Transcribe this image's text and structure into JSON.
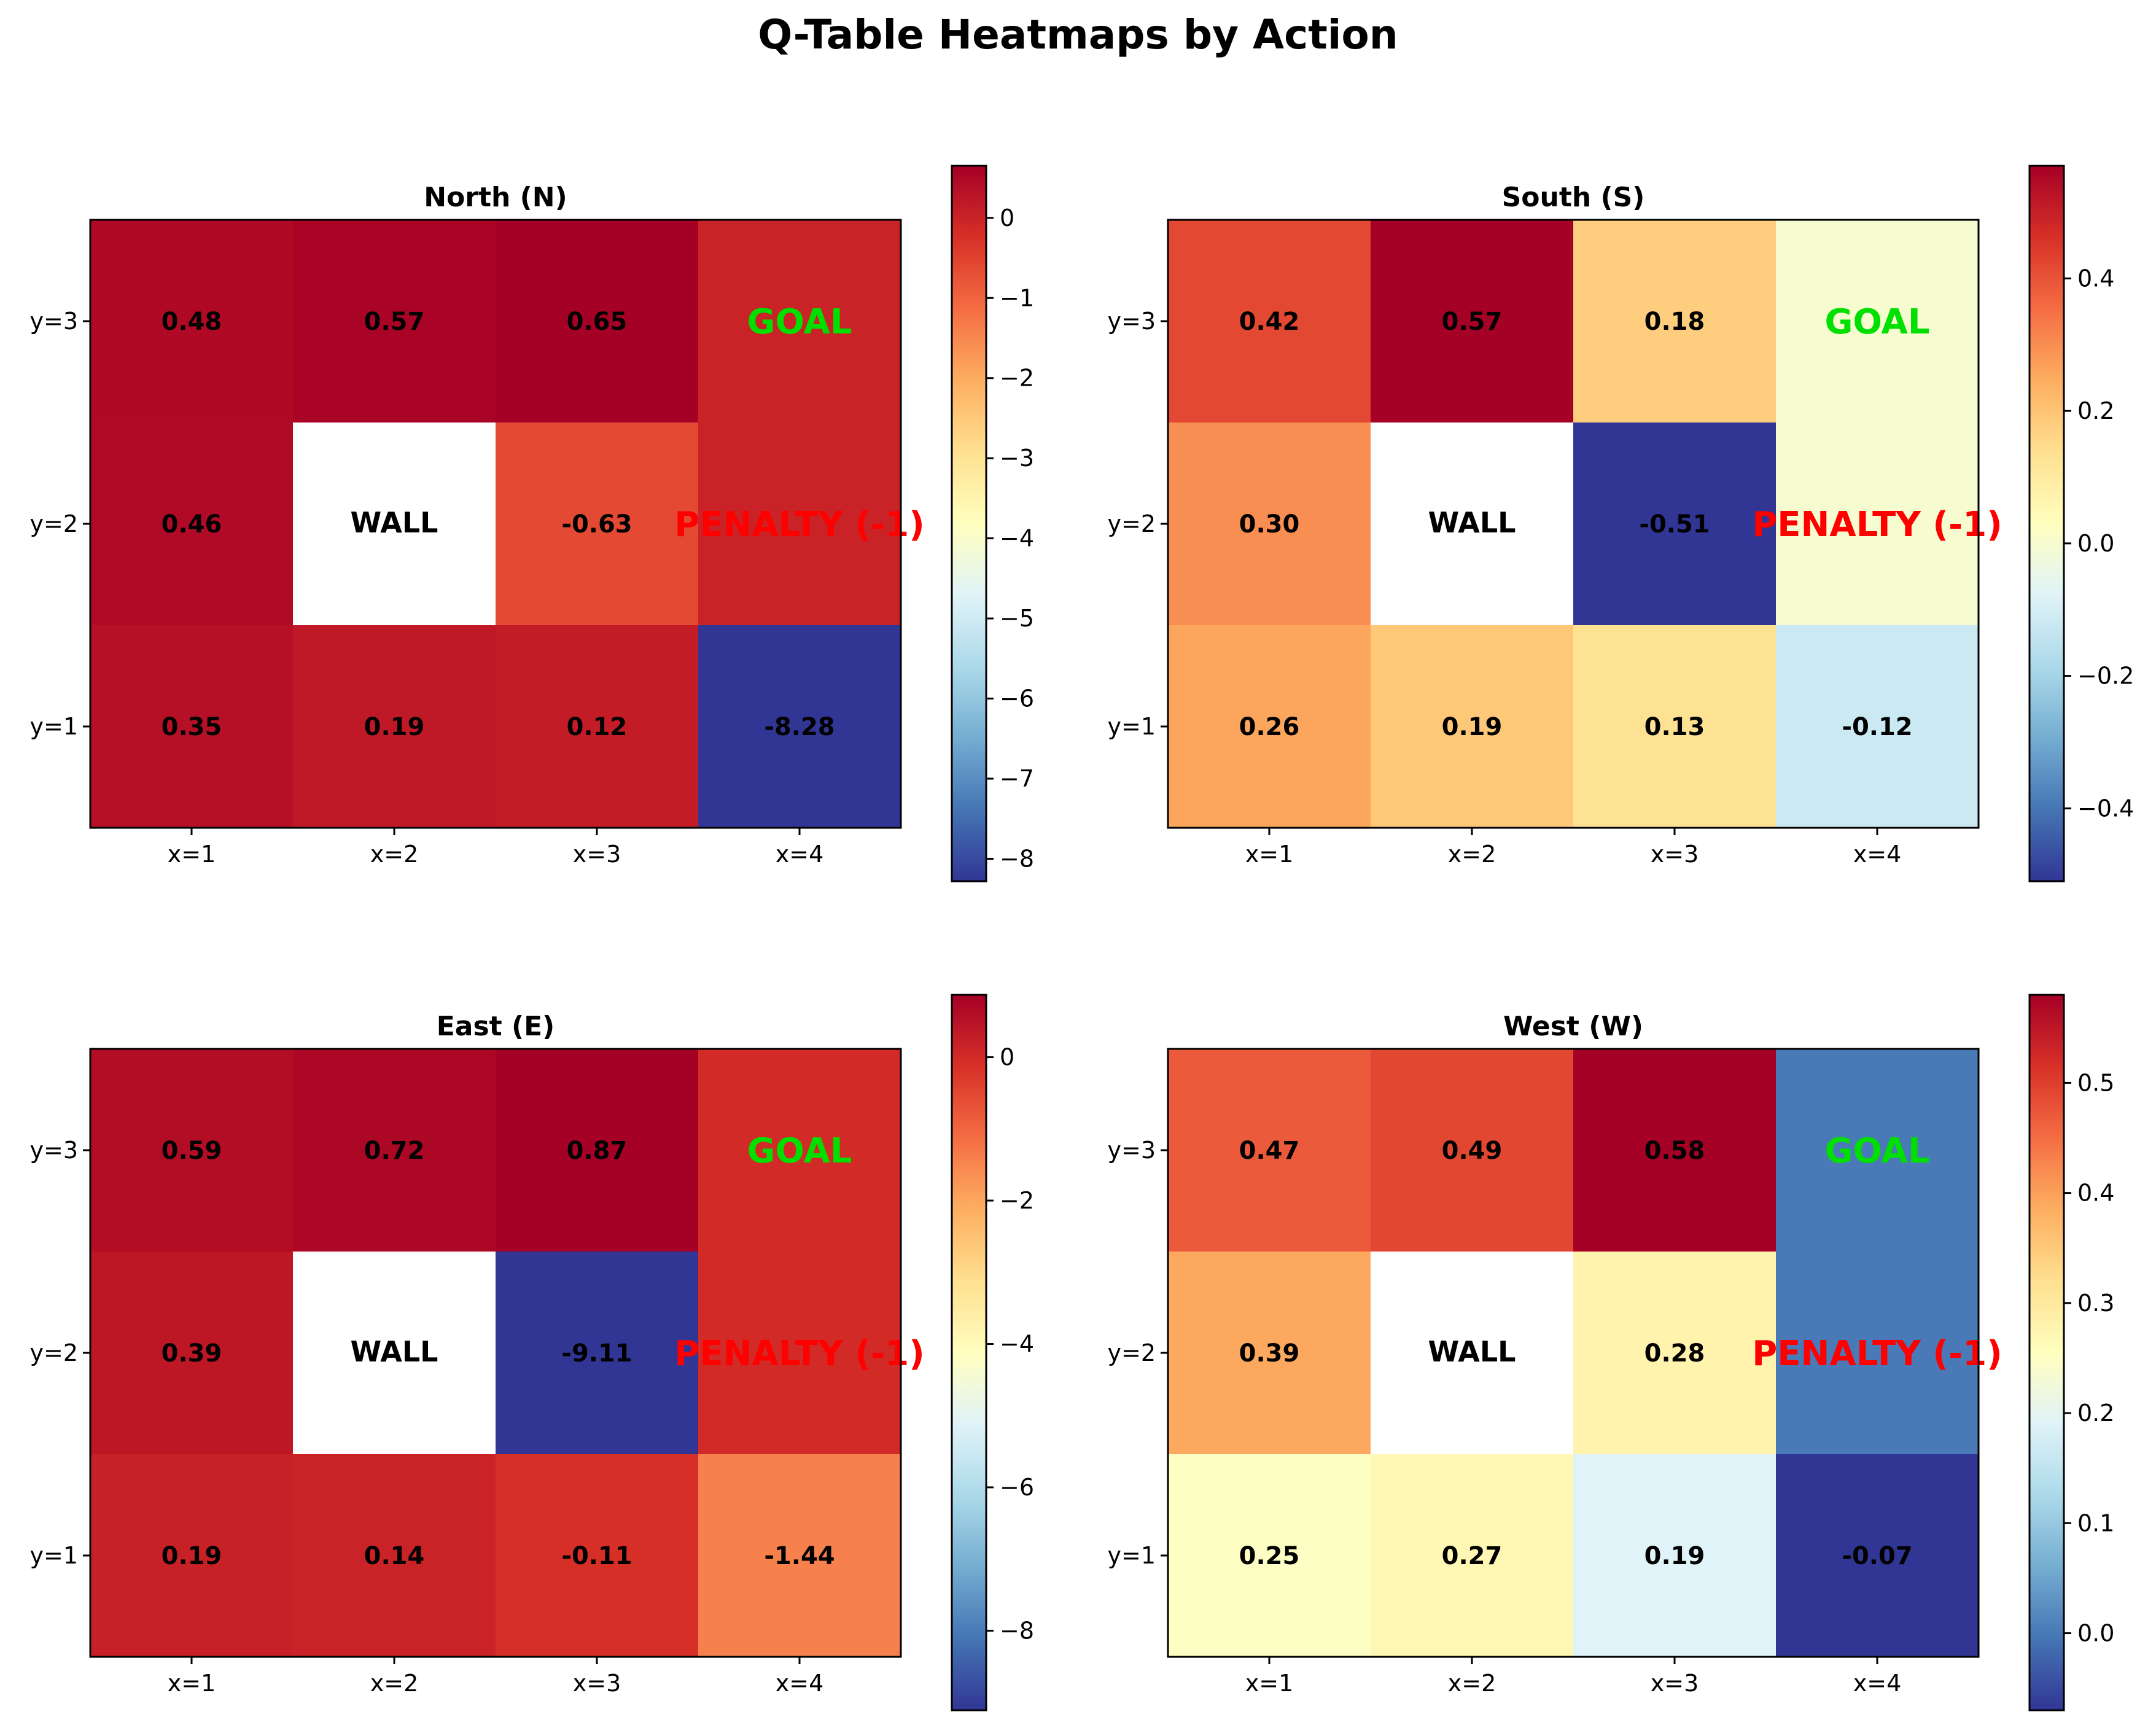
{
  "figure": {
    "title": "Q-Table Heatmaps by Action"
  },
  "labels": {
    "wall": "WALL",
    "goal": "GOAL",
    "penalty": "PENALTY (-1)"
  },
  "colors": {
    "goal": "#00e000",
    "penalty": "#ff0000",
    "wall": "#ffffff",
    "text": "#000000",
    "colormap": "RdYlBu_r"
  },
  "chart_data": [
    {
      "type": "heatmap",
      "title": "North (N)",
      "x_categories": [
        "x=1",
        "x=2",
        "x=3",
        "x=4"
      ],
      "y_categories": [
        "y=3",
        "y=2",
        "y=1"
      ],
      "values": [
        [
          0.48,
          0.57,
          0.65,
          null
        ],
        [
          0.46,
          null,
          -0.63,
          null
        ],
        [
          0.35,
          0.19,
          0.12,
          -8.28
        ]
      ],
      "value_labels": [
        [
          "0.48",
          "0.57",
          "0.65",
          "GOAL"
        ],
        [
          "0.46",
          "WALL",
          "-0.63",
          "PENALTY (-1)"
        ],
        [
          "0.35",
          "0.19",
          "0.12",
          "-8.28"
        ]
      ],
      "fill_values": [
        [
          0.48,
          0.57,
          0.65,
          0.0
        ],
        [
          0.46,
          null,
          -0.63,
          0.0
        ],
        [
          0.35,
          0.19,
          0.12,
          -8.28
        ]
      ],
      "colorbar": {
        "min": -8.28,
        "max": 0.65,
        "ticks": [
          0,
          -1,
          -2,
          -3,
          -4,
          -5,
          -6,
          -7,
          -8
        ],
        "tick_labels": [
          "0",
          "−1",
          "−2",
          "−3",
          "−4",
          "−5",
          "−6",
          "−7",
          "−8"
        ]
      }
    },
    {
      "type": "heatmap",
      "title": "South (S)",
      "x_categories": [
        "x=1",
        "x=2",
        "x=3",
        "x=4"
      ],
      "y_categories": [
        "y=3",
        "y=2",
        "y=1"
      ],
      "values": [
        [
          0.42,
          0.57,
          0.18,
          null
        ],
        [
          0.3,
          null,
          -0.51,
          null
        ],
        [
          0.26,
          0.19,
          0.13,
          -0.12
        ]
      ],
      "value_labels": [
        [
          "0.42",
          "0.57",
          "0.18",
          "GOAL"
        ],
        [
          "0.30",
          "WALL",
          "-0.51",
          "PENALTY (-1)"
        ],
        [
          "0.26",
          "0.19",
          "0.13",
          "-0.12"
        ]
      ],
      "fill_values": [
        [
          0.42,
          0.57,
          0.18,
          0.0
        ],
        [
          0.3,
          null,
          -0.51,
          0.0
        ],
        [
          0.26,
          0.19,
          0.13,
          -0.12
        ]
      ],
      "colorbar": {
        "min": -0.51,
        "max": 0.57,
        "ticks": [
          0.4,
          0.2,
          0.0,
          -0.2,
          -0.4
        ],
        "tick_labels": [
          "0.4",
          "0.2",
          "0.0",
          "−0.2",
          "−0.4"
        ]
      }
    },
    {
      "type": "heatmap",
      "title": "East (E)",
      "x_categories": [
        "x=1",
        "x=2",
        "x=3",
        "x=4"
      ],
      "y_categories": [
        "y=3",
        "y=2",
        "y=1"
      ],
      "values": [
        [
          0.59,
          0.72,
          0.87,
          null
        ],
        [
          0.39,
          null,
          -9.11,
          null
        ],
        [
          0.19,
          0.14,
          -0.11,
          -1.44
        ]
      ],
      "value_labels": [
        [
          "0.59",
          "0.72",
          "0.87",
          "GOAL"
        ],
        [
          "0.39",
          "WALL",
          "-9.11",
          "PENALTY (-1)"
        ],
        [
          "0.19",
          "0.14",
          "-0.11",
          "-1.44"
        ]
      ],
      "fill_values": [
        [
          0.59,
          0.72,
          0.87,
          0.0
        ],
        [
          0.39,
          null,
          -9.11,
          0.0
        ],
        [
          0.19,
          0.14,
          -0.11,
          -1.44
        ]
      ],
      "colorbar": {
        "min": -9.11,
        "max": 0.87,
        "ticks": [
          0,
          -2,
          -4,
          -6,
          -8
        ],
        "tick_labels": [
          "0",
          "−2",
          "−4",
          "−6",
          "−8"
        ]
      }
    },
    {
      "type": "heatmap",
      "title": "West (W)",
      "x_categories": [
        "x=1",
        "x=2",
        "x=3",
        "x=4"
      ],
      "y_categories": [
        "y=3",
        "y=2",
        "y=1"
      ],
      "values": [
        [
          0.47,
          0.49,
          0.58,
          null
        ],
        [
          0.39,
          null,
          0.28,
          null
        ],
        [
          0.25,
          0.27,
          0.19,
          -0.07
        ]
      ],
      "value_labels": [
        [
          "0.47",
          "0.49",
          "0.58",
          "GOAL"
        ],
        [
          "0.39",
          "WALL",
          "0.28",
          "PENALTY (-1)"
        ],
        [
          "0.25",
          "0.27",
          "0.19",
          "-0.07"
        ]
      ],
      "fill_values": [
        [
          0.47,
          0.49,
          0.58,
          0.0
        ],
        [
          0.39,
          null,
          0.28,
          0.0
        ],
        [
          0.25,
          0.27,
          0.19,
          -0.07
        ]
      ],
      "colorbar": {
        "min": -0.07,
        "max": 0.58,
        "ticks": [
          0.5,
          0.4,
          0.3,
          0.2,
          0.1,
          0.0
        ],
        "tick_labels": [
          "0.5",
          "0.4",
          "0.3",
          "0.2",
          "0.1",
          "0.0"
        ]
      }
    }
  ]
}
